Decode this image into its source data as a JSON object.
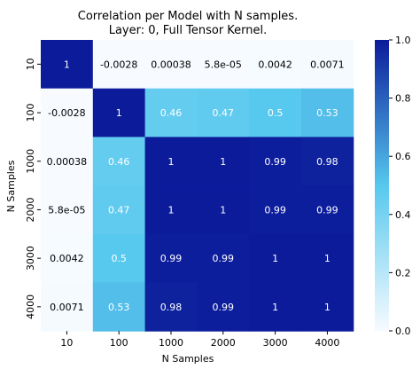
{
  "chart_data": {
    "type": "heatmap",
    "title": "Correlation per Model with N samples.",
    "subtitle": "Layer: 0, Full Tensor Kernel.",
    "xlabel": "N Samples",
    "ylabel": "N Samples",
    "categories": [
      "10",
      "100",
      "1000",
      "2000",
      "3000",
      "4000"
    ],
    "values": [
      [
        1,
        -0.0028,
        0.00038,
        5.8e-05,
        0.0042,
        0.0071
      ],
      [
        -0.0028,
        1,
        0.46,
        0.47,
        0.5,
        0.53
      ],
      [
        0.00038,
        0.46,
        1,
        1,
        0.99,
        0.98
      ],
      [
        5.8e-05,
        0.47,
        1,
        1,
        0.99,
        0.99
      ],
      [
        0.0042,
        0.5,
        0.99,
        0.99,
        1,
        1
      ],
      [
        0.0071,
        0.53,
        0.98,
        0.99,
        1,
        1
      ]
    ],
    "labels": [
      [
        "1",
        "-0.0028",
        "0.00038",
        "5.8e-05",
        "0.0042",
        "0.0071"
      ],
      [
        "-0.0028",
        "1",
        "0.46",
        "0.47",
        "0.5",
        "0.53"
      ],
      [
        "0.00038",
        "0.46",
        "1",
        "1",
        "0.99",
        "0.98"
      ],
      [
        "5.8e-05",
        "0.47",
        "1",
        "1",
        "0.99",
        "0.99"
      ],
      [
        "0.0042",
        "0.5",
        "0.99",
        "0.99",
        "1",
        "1"
      ],
      [
        "0.0071",
        "0.53",
        "0.98",
        "0.99",
        "1",
        "1"
      ]
    ],
    "colorbar": {
      "min": 0.0,
      "max": 1.0,
      "ticks": [
        "0.0",
        "0.2",
        "0.4",
        "0.6",
        "0.8",
        "1.0"
      ],
      "colors": [
        "#f7fbff",
        "#57c8ee",
        "#0b1b9a"
      ]
    }
  }
}
